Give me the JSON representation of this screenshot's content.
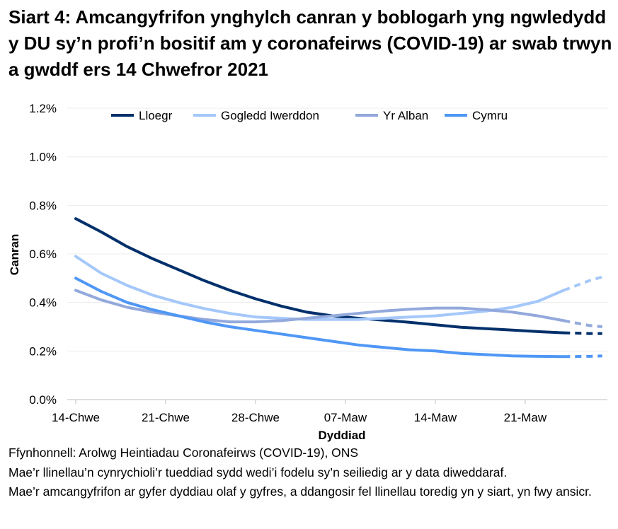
{
  "title": "Siart 4: Amcangyfrifon ynghylch canran y boblogarh yng ngwledydd y DU sy’n profi’n bositif am y coronafeirws (COVID-19) ar swab trwyn a gwddf ers 14 Chwefror 2021",
  "footer": {
    "source": "Ffynhonnell: Arolwg Heintiadau Coronafeirws (COVID-19), ONS",
    "note1": "Mae’r llinellau’n cynrychioli’r tueddiad sydd wedi’i fodelu sy’n seiliedig ar y data diweddaraf.",
    "note2": "Mae’r amcangyfrifon ar gyfer dyddiau olaf y gyfres, a ddangosir fel llinellau toredig yn y siart, yn fwy ansicr."
  },
  "chart_data": {
    "type": "line",
    "title": "",
    "xlabel": "Dyddiad",
    "ylabel": "Canran",
    "ylim": [
      0,
      1.2
    ],
    "yticks": [
      "0.0%",
      "0.2%",
      "0.4%",
      "0.6%",
      "0.8%",
      "1.0%",
      "1.2%"
    ],
    "xticks": [
      "14-Chwe",
      "21-Chwe",
      "28-Chwe",
      "07-Maw",
      "14-Maw",
      "21-Maw"
    ],
    "xrange": [
      "2021-02-14",
      "2021-03-28"
    ],
    "grid": true,
    "legend_position": "top",
    "dashed_from": "2021-03-24",
    "x": [
      "2021-02-14",
      "2021-02-16",
      "2021-02-18",
      "2021-02-20",
      "2021-02-22",
      "2021-02-24",
      "2021-02-26",
      "2021-02-28",
      "2021-03-02",
      "2021-03-04",
      "2021-03-06",
      "2021-03-08",
      "2021-03-10",
      "2021-03-12",
      "2021-03-14",
      "2021-03-16",
      "2021-03-18",
      "2021-03-20",
      "2021-03-22",
      "2021-03-24",
      "2021-03-26",
      "2021-03-27"
    ],
    "series": [
      {
        "name": "Lloegr",
        "color": "#00306b",
        "values": [
          0.745,
          0.69,
          0.63,
          0.58,
          0.535,
          0.49,
          0.45,
          0.415,
          0.385,
          0.36,
          0.345,
          0.335,
          0.327,
          0.318,
          0.308,
          0.298,
          0.292,
          0.286,
          0.28,
          0.275,
          0.272,
          0.272
        ]
      },
      {
        "name": "Gogledd Iwerddon",
        "color": "#a5c8fa",
        "values": [
          0.59,
          0.52,
          0.47,
          0.43,
          0.4,
          0.375,
          0.355,
          0.34,
          0.335,
          0.33,
          0.33,
          0.33,
          0.335,
          0.34,
          0.345,
          0.355,
          0.365,
          0.38,
          0.405,
          0.45,
          0.49,
          0.505
        ]
      },
      {
        "name": "Yr Alban",
        "color": "#93a9dc",
        "values": [
          0.45,
          0.41,
          0.38,
          0.36,
          0.345,
          0.33,
          0.32,
          0.32,
          0.325,
          0.335,
          0.345,
          0.355,
          0.365,
          0.372,
          0.377,
          0.377,
          0.37,
          0.36,
          0.345,
          0.325,
          0.305,
          0.3
        ]
      },
      {
        "name": "Cymru",
        "color": "#4f97f5",
        "values": [
          0.5,
          0.445,
          0.4,
          0.37,
          0.345,
          0.32,
          0.3,
          0.285,
          0.27,
          0.255,
          0.24,
          0.225,
          0.215,
          0.205,
          0.2,
          0.19,
          0.185,
          0.18,
          0.178,
          0.177,
          0.178,
          0.18
        ]
      }
    ]
  }
}
